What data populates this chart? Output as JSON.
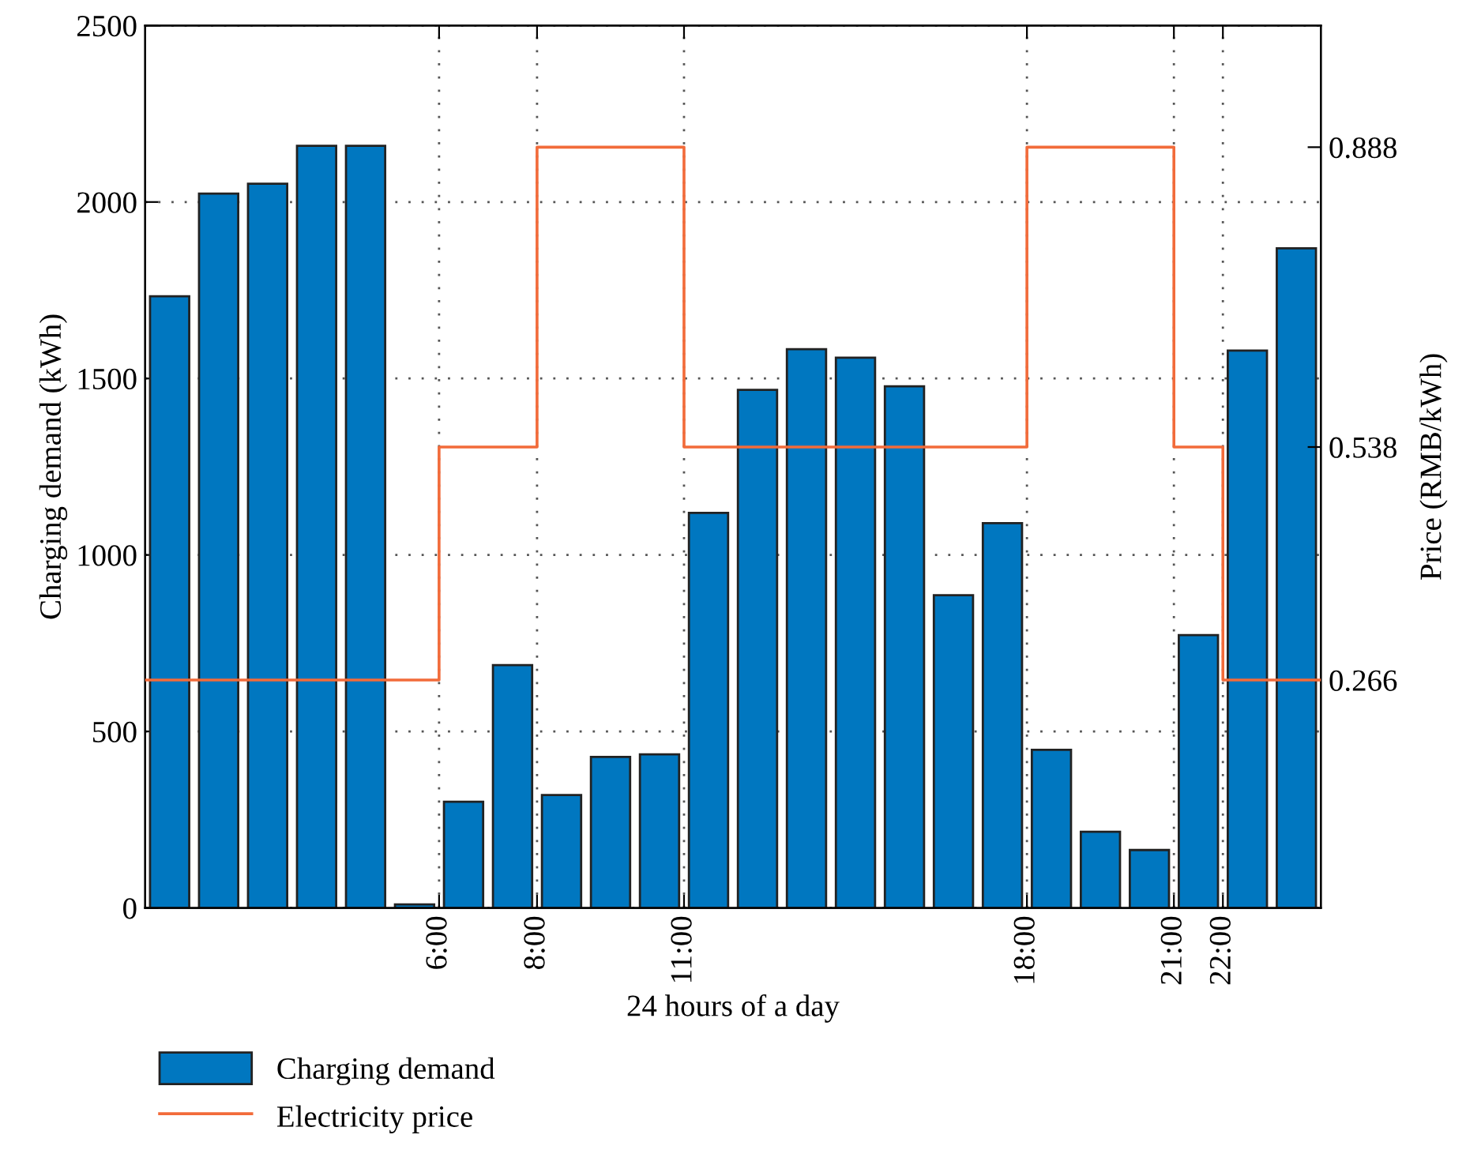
{
  "chart_data": {
    "type": "bar",
    "xlabel": "24 hours of a day",
    "ylabel": "Charging demand (kWh)",
    "y2label": "Price (RMB/kWh)",
    "xlim": [
      0,
      24
    ],
    "xticks": [
      {
        "value": 6,
        "label": "6:00"
      },
      {
        "value": 8,
        "label": "8:00"
      },
      {
        "value": 11,
        "label": "11:00"
      },
      {
        "value": 18,
        "label": "18:00"
      },
      {
        "value": 21,
        "label": "21:00"
      },
      {
        "value": 22,
        "label": "22:00"
      }
    ],
    "ylim": [
      0,
      2500
    ],
    "yticks": [
      0,
      500,
      1000,
      1500,
      2000,
      2500
    ],
    "y2lim": [
      0,
      1.03
    ],
    "y2ticks": [
      0.266,
      0.538,
      0.888
    ],
    "grid": true,
    "legend": "bottom left",
    "series": [
      {
        "name": "Charging demand",
        "color": "#0077c0",
        "x": [
          0.5,
          1.5,
          2.5,
          3.5,
          4.5,
          5.5,
          6.5,
          7.5,
          8.5,
          9.5,
          10.5,
          11.5,
          12.5,
          13.5,
          14.5,
          15.5,
          16.5,
          17.5,
          18.5,
          19.5,
          20.5,
          21.5,
          22.5,
          23.5
        ],
        "values": [
          1733,
          2024,
          2052,
          2159,
          2159,
          10,
          301,
          688,
          320,
          428,
          435,
          1119,
          1468,
          1583,
          1559,
          1478,
          886,
          1090,
          448,
          216,
          164,
          773,
          1579,
          1869
        ]
      },
      {
        "name": "Electricity price",
        "type": "step",
        "axis": "y2",
        "color": "#f26b3a",
        "x": [
          0,
          6,
          8,
          11,
          18,
          21,
          22,
          24
        ],
        "values": [
          0.266,
          0.538,
          0.888,
          0.538,
          0.888,
          0.538,
          0.266,
          0.266
        ]
      }
    ]
  }
}
